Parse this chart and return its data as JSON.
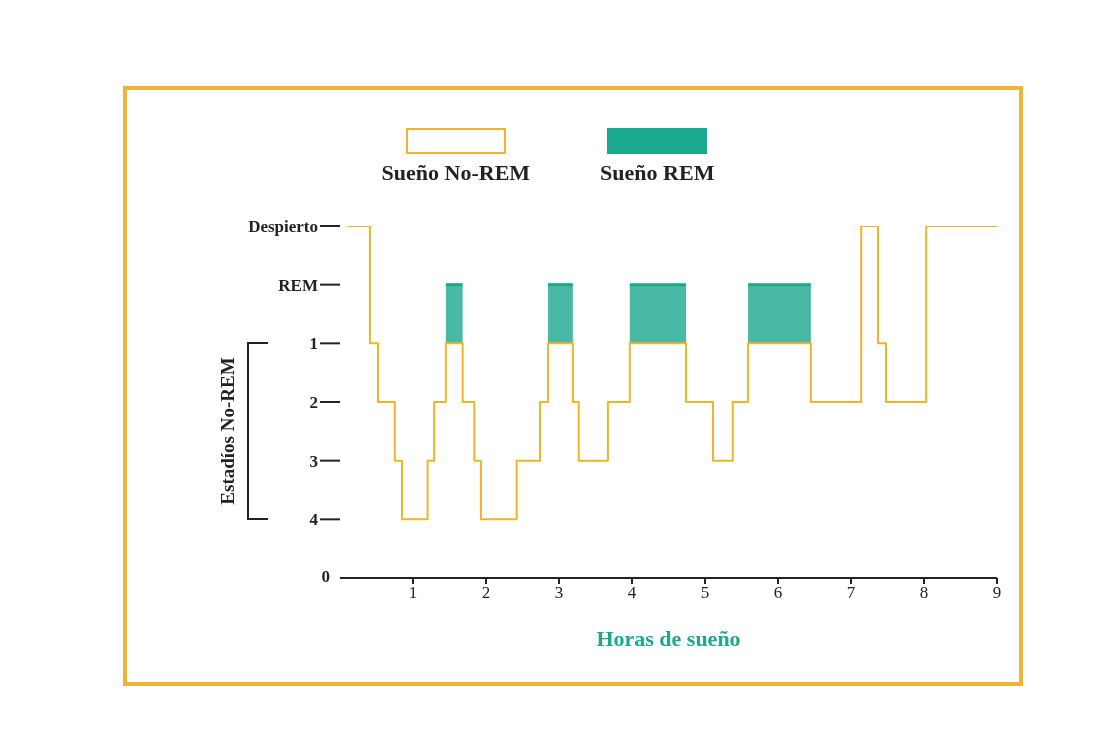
{
  "chart_data": {
    "type": "step",
    "xlabel": "Horas de sueño",
    "ylabel": "Estadíos No-REM",
    "legend": "top",
    "line_style": "solid",
    "marker": "none",
    "grid": false,
    "annotations": [
      "0"
    ],
    "xlim": [
      0,
      9
    ],
    "xticks": [
      1,
      2,
      3,
      4,
      5,
      6,
      7,
      8,
      9
    ],
    "ylim": [
      5,
      -1
    ],
    "yticks": [
      {
        "value": -1,
        "label": "Despierto"
      },
      {
        "value": 0,
        "label": "REM"
      },
      1,
      2,
      3,
      4
    ],
    "series": [
      {
        "name": "Sueño No-REM",
        "color": "#f0b429",
        "x": [
          0.1,
          0.41,
          0.52,
          0.75,
          0.85,
          1.2,
          1.29,
          1.45,
          1.68,
          1.84,
          1.93,
          2.42,
          2.74,
          2.85,
          3.19,
          3.27,
          3.67,
          3.97,
          4.74,
          5.11,
          5.38,
          5.59,
          6.45,
          7.14,
          7.37,
          7.48,
          8.03,
          9.0
        ],
        "values": [
          -1,
          1,
          2,
          3,
          4,
          3,
          2,
          1,
          2,
          3,
          4,
          3,
          2,
          1,
          2,
          3,
          2,
          1,
          2,
          3,
          2,
          1,
          2,
          -1,
          1,
          2,
          -1,
          -1
        ]
      },
      {
        "name": "Sueño REM",
        "type": "line",
        "color": "#1aa88f",
        "x": [
          1.45,
          1.68
        ],
        "values": [
          0,
          0
        ],
        "lower": [
          1,
          1
        ],
        "upper": [
          0,
          0
        ]
      },
      {
        "type": "line",
        "color": "#1aa88f",
        "x": [
          2.85,
          3.19
        ],
        "values": [
          0,
          0
        ],
        "lower": [
          1,
          1
        ],
        "upper": [
          0,
          0
        ]
      },
      {
        "type": "line",
        "color": "#1aa88f",
        "x": [
          3.97,
          4.74
        ],
        "values": [
          0,
          0
        ],
        "lower": [
          1,
          1
        ],
        "upper": [
          0,
          0
        ]
      },
      {
        "type": "line",
        "color": "#1aa88f",
        "x": [
          5.59,
          6.45
        ],
        "values": [
          0,
          0
        ],
        "lower": [
          1,
          1
        ],
        "upper": [
          0,
          0
        ]
      }
    ]
  }
}
